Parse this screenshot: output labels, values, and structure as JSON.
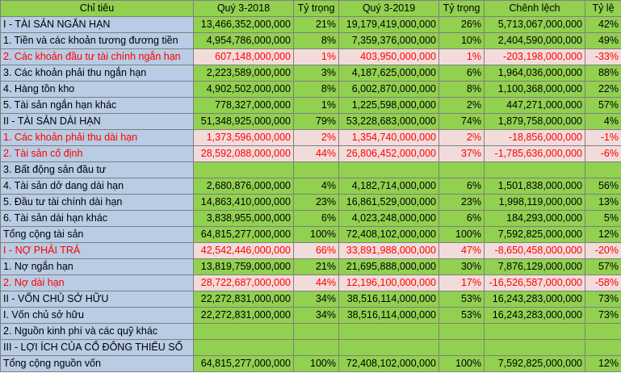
{
  "headers": {
    "indicator": "Chỉ tiêu",
    "q3_2018": "Quý 3-2018",
    "ratio_2018": "Tỷ trọng",
    "q3_2019": "Quý 3-2019",
    "ratio_2019": "Tỷ trọng",
    "difference": "Chênh lệch",
    "rate": "Tỷ lệ"
  },
  "rows": [
    {
      "name": "   I - TÀI SẢN NGẮN HẠN",
      "q2018": "13,466,352,000,000",
      "r2018": "21%",
      "q2019": "19,179,419,000,000",
      "r2019": "26%",
      "diff": "5,713,067,000,000",
      "rate": "42%",
      "red": false
    },
    {
      "name": "1. Tiền và các khoản tương đương tiền",
      "q2018": "4,954,786,000,000",
      "r2018": "8%",
      "q2019": "7,359,376,000,000",
      "r2019": "10%",
      "diff": "2,404,590,000,000",
      "rate": "49%",
      "red": false
    },
    {
      "name": "2. Các khoản đầu tư tài chính ngắn hạn",
      "q2018": "607,148,000,000",
      "r2018": "1%",
      "q2019": "403,950,000,000",
      "r2019": "1%",
      "diff": "-203,198,000,000",
      "rate": "-33%",
      "red": true
    },
    {
      "name": "3. Các khoản phải thu ngắn hạn",
      "q2018": "2,223,589,000,000",
      "r2018": "3%",
      "q2019": "4,187,625,000,000",
      "r2019": "6%",
      "diff": "1,964,036,000,000",
      "rate": "88%",
      "red": false
    },
    {
      "name": "4. Hàng tồn kho",
      "q2018": "4,902,502,000,000",
      "r2018": "8%",
      "q2019": "6,002,870,000,000",
      "r2019": "8%",
      "diff": "1,100,368,000,000",
      "rate": "22%",
      "red": false
    },
    {
      "name": "5. Tài sản ngắn hạn khác",
      "q2018": "778,327,000,000",
      "r2018": "1%",
      "q2019": "1,225,598,000,000",
      "r2019": "2%",
      "diff": "447,271,000,000",
      "rate": "57%",
      "red": false
    },
    {
      "name": "    II - TÀI SẢN DÀI HẠN",
      "q2018": "51,348,925,000,000",
      "r2018": "79%",
      "q2019": "53,228,683,000,000",
      "r2019": "74%",
      "diff": "1,879,758,000,000",
      "rate": "4%",
      "red": false
    },
    {
      "name": "1. Các khoản phải thu dài hạn",
      "q2018": "1,373,596,000,000",
      "r2018": "2%",
      "q2019": "1,354,740,000,000",
      "r2019": "2%",
      "diff": "-18,856,000,000",
      "rate": "-1%",
      "red": true
    },
    {
      "name": "2. Tài sản cố định",
      "q2018": "28,592,088,000,000",
      "r2018": "44%",
      "q2019": "26,806,452,000,000",
      "r2019": "37%",
      "diff": "-1,785,636,000,000",
      "rate": "-6%",
      "red": true
    },
    {
      "name": "3. Bất động sản đầu tư",
      "q2018": "",
      "r2018": "",
      "q2019": "",
      "r2019": "",
      "diff": "",
      "rate": "",
      "red": false
    },
    {
      "name": "4. Tài sản dở dang dài hạn",
      "q2018": "2,680,876,000,000",
      "r2018": "4%",
      "q2019": "4,182,714,000,000",
      "r2019": "6%",
      "diff": "1,501,838,000,000",
      "rate": "56%",
      "red": false
    },
    {
      "name": "5. Đầu tư tài chính dài hạn",
      "q2018": "14,863,410,000,000",
      "r2018": "23%",
      "q2019": "16,861,529,000,000",
      "r2019": "23%",
      "diff": "1,998,119,000,000",
      "rate": "13%",
      "red": false
    },
    {
      "name": "6. Tài sản dài hạn khác",
      "q2018": "3,838,955,000,000",
      "r2018": "6%",
      "q2019": "4,023,248,000,000",
      "r2019": "6%",
      "diff": "184,293,000,000",
      "rate": "5%",
      "red": false
    },
    {
      "name": "    Tổng cộng tài sản",
      "q2018": "64,815,277,000,000",
      "r2018": "100%",
      "q2019": "72,408,102,000,000",
      "r2019": "100%",
      "diff": "7,592,825,000,000",
      "rate": "12%",
      "red": false
    },
    {
      "name": "   I - NỢ PHẢI TRẢ",
      "q2018": "42,542,446,000,000",
      "r2018": "66%",
      "q2019": "33,891,988,000,000",
      "r2019": "47%",
      "diff": "-8,650,458,000,000",
      "rate": "-20%",
      "red": true
    },
    {
      "name": "1. Nợ ngắn hạn",
      "q2018": "13,819,759,000,000",
      "r2018": "21%",
      "q2019": "21,695,888,000,000",
      "r2019": "30%",
      "diff": "7,876,129,000,000",
      "rate": "57%",
      "red": false
    },
    {
      "name": "2. Nợ dài hạn",
      "q2018": "28,722,687,000,000",
      "r2018": "44%",
      "q2019": "12,196,100,000,000",
      "r2019": "17%",
      "diff": "-16,526,587,000,000",
      "rate": "-58%",
      "red": true
    },
    {
      "name": "    II - VỐN CHỦ SỞ HỮU",
      "q2018": "22,272,831,000,000",
      "r2018": "34%",
      "q2019": "38,516,114,000,000",
      "r2019": "53%",
      "diff": "16,243,283,000,000",
      "rate": "73%",
      "red": false
    },
    {
      "name": "I. Vốn chủ sở hữu",
      "q2018": "22,272,831,000,000",
      "r2018": "34%",
      "q2019": "38,516,114,000,000",
      "r2019": "53%",
      "diff": "16,243,283,000,000",
      "rate": "73%",
      "red": false
    },
    {
      "name": "2. Nguồn kinh phí và các quỹ khác",
      "q2018": "",
      "r2018": "",
      "q2019": "",
      "r2019": "",
      "diff": "",
      "rate": "",
      "red": false
    },
    {
      "name": "    III - LỢI ÍCH CỦA CỔ ĐÔNG THIỂU SỐ",
      "q2018": "",
      "r2018": "",
      "q2019": "",
      "r2019": "",
      "diff": "",
      "rate": "",
      "red": false
    },
    {
      "name": "    Tổng cộng nguồn vốn",
      "q2018": "64,815,277,000,000",
      "r2018": "100%",
      "q2019": "72,408,102,000,000",
      "r2019": "100%",
      "diff": "7,592,825,000,000",
      "rate": "12%",
      "red": false
    }
  ]
}
